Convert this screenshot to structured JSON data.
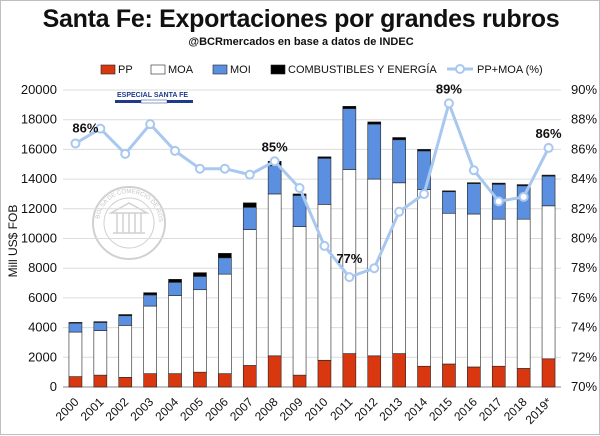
{
  "chart_data": {
    "type": "bar",
    "title": "Santa Fe: Exportaciones por grandes rubros",
    "subtitle": "@BCRmercados en base a datos de INDEC",
    "ylabel": "Mill US$ FOB",
    "xlabel": "",
    "ylim": [
      0,
      20000
    ],
    "y2lim": [
      70,
      90
    ],
    "yticks": [
      "0",
      "2000",
      "4000",
      "6000",
      "8000",
      "10000",
      "12000",
      "14000",
      "16000",
      "18000",
      "20000"
    ],
    "y2ticks": [
      "70%",
      "72%",
      "74%",
      "76%",
      "78%",
      "80%",
      "82%",
      "84%",
      "86%",
      "88%",
      "90%"
    ],
    "categories": [
      "2000",
      "2001",
      "2002",
      "2003",
      "2004",
      "2005",
      "2006",
      "2007",
      "2008",
      "2009",
      "2010",
      "2011",
      "2012",
      "2013",
      "2014",
      "2015",
      "2016",
      "2017",
      "2018",
      "2019*"
    ],
    "series": [
      {
        "name": "PP",
        "color": "#d9370f",
        "values": [
          700,
          800,
          650,
          900,
          900,
          1000,
          900,
          1450,
          2100,
          800,
          1800,
          2250,
          2100,
          2250,
          1400,
          1550,
          1350,
          1400,
          1250,
          1900
        ]
      },
      {
        "name": "MOA",
        "color": "#ffffff",
        "values": [
          3000,
          3000,
          3500,
          4550,
          5250,
          5550,
          6700,
          9150,
          10900,
          10000,
          10500,
          12400,
          11900,
          11500,
          11900,
          10150,
          10300,
          9900,
          10050,
          10300
        ]
      },
      {
        "name": "MOI",
        "color": "#5b8fe0",
        "values": [
          600,
          550,
          650,
          750,
          900,
          900,
          1100,
          1500,
          1900,
          2100,
          3100,
          4100,
          3700,
          2900,
          2600,
          1450,
          2050,
          2350,
          2250,
          2000
        ]
      },
      {
        "name": "COMBUSTIBLES Y ENERGÍA",
        "color": "#000000",
        "values": [
          50,
          50,
          80,
          150,
          200,
          250,
          300,
          300,
          300,
          100,
          100,
          150,
          150,
          150,
          100,
          60,
          60,
          80,
          80,
          70
        ]
      }
    ],
    "line": {
      "name": "PP+MOA (%)",
      "color": "#a8c8f0",
      "values": [
        86.4,
        87.4,
        85.7,
        87.7,
        85.9,
        84.7,
        84.7,
        84.3,
        85.2,
        83.4,
        79.5,
        77.4,
        78.0,
        81.8,
        83.0,
        89.1,
        84.6,
        82.5,
        82.8,
        86.1
      ]
    },
    "annotations": [
      {
        "label": "86%",
        "index": 0
      },
      {
        "label": "85%",
        "index": 8
      },
      {
        "label": "77%",
        "index": 11
      },
      {
        "label": "89%",
        "index": 15
      },
      {
        "label": "86%",
        "index": 19
      }
    ],
    "legend": [
      "PP",
      "MOA",
      "MOI",
      "COMBUSTIBLES Y ENERGÍA",
      "PP+MOA (%)"
    ],
    "legend_position": "top",
    "badge": "ESPECIAL SANTA FE",
    "seal_text": "BOLSA DE COMERCIO DE ROSARIO"
  }
}
